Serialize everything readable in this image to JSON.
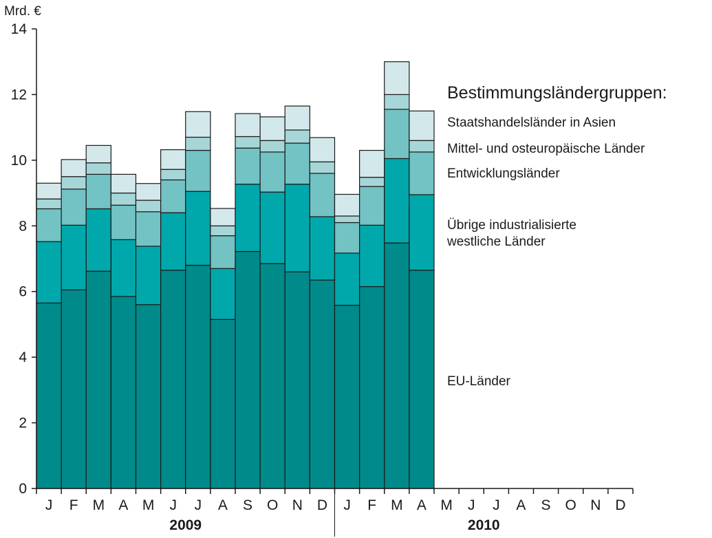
{
  "chart_data": {
    "type": "bar",
    "stacked": true,
    "unit_label": "Mrd. €",
    "ylim": [
      0,
      14
    ],
    "y_ticks": [
      0,
      2,
      4,
      6,
      8,
      10,
      12,
      14
    ],
    "grid": false,
    "legend_title": "Bestimmungsländergruppen:",
    "legend_placement": "right",
    "month_labels": [
      "J",
      "F",
      "M",
      "A",
      "M",
      "J",
      "J",
      "A",
      "S",
      "O",
      "N",
      "D",
      "J",
      "F",
      "M",
      "A",
      "M",
      "J",
      "J",
      "A",
      "S",
      "O",
      "N",
      "D"
    ],
    "years": [
      "2009",
      "2010"
    ],
    "series": [
      {
        "name": "EU-Länder",
        "color": "#008a8a",
        "values": [
          5.65,
          6.05,
          6.62,
          5.85,
          5.6,
          6.65,
          6.8,
          5.15,
          7.22,
          6.85,
          6.6,
          6.35,
          5.58,
          6.15,
          7.48,
          6.65,
          null,
          null,
          null,
          null,
          null,
          null,
          null,
          null
        ]
      },
      {
        "name": "Übrige industrialisierte westliche Länder",
        "label_lines": [
          "Übrige industrialisierte",
          "westliche Länder"
        ],
        "color": "#00a8ac",
        "values": [
          1.87,
          1.97,
          1.9,
          1.73,
          1.78,
          1.75,
          2.25,
          1.55,
          2.05,
          2.18,
          2.67,
          1.93,
          1.59,
          1.87,
          2.57,
          2.3,
          null,
          null,
          null,
          null,
          null,
          null,
          null,
          null
        ]
      },
      {
        "name": "Entwicklungsländer",
        "color": "#73c2c4",
        "values": [
          1.0,
          1.1,
          1.05,
          1.05,
          1.05,
          1.0,
          1.25,
          1.0,
          1.1,
          1.22,
          1.25,
          1.32,
          0.93,
          1.18,
          1.5,
          1.3,
          null,
          null,
          null,
          null,
          null,
          null,
          null,
          null
        ]
      },
      {
        "name": "Mittel- und osteuropäische Länder",
        "color": "#a6d6d8",
        "values": [
          0.3,
          0.38,
          0.35,
          0.37,
          0.35,
          0.32,
          0.4,
          0.3,
          0.35,
          0.35,
          0.4,
          0.35,
          0.2,
          0.28,
          0.45,
          0.35,
          null,
          null,
          null,
          null,
          null,
          null,
          null,
          null
        ]
      },
      {
        "name": "Staatshandelsländer in Asien",
        "color": "#d3e8eb",
        "values": [
          0.48,
          0.52,
          0.53,
          0.57,
          0.51,
          0.6,
          0.78,
          0.53,
          0.7,
          0.72,
          0.73,
          0.74,
          0.66,
          0.82,
          1.0,
          0.9,
          null,
          null,
          null,
          null,
          null,
          null,
          null,
          null
        ]
      }
    ]
  }
}
